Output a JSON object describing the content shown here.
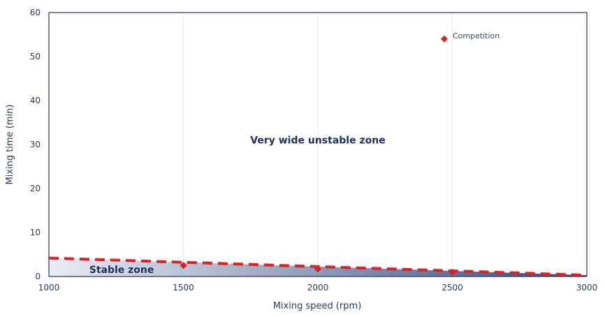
{
  "chart_data": {
    "type": "scatter",
    "xlabel": "Mixing speed (rpm)",
    "ylabel": "Mixing time (min)",
    "xlim": [
      1000,
      3000
    ],
    "ylim": [
      0,
      60
    ],
    "x_ticks": [
      1000,
      1500,
      2000,
      2500,
      3000
    ],
    "y_ticks": [
      0,
      10,
      20,
      30,
      40,
      50,
      60
    ],
    "grid": "vertical",
    "legend_position": "top-right",
    "colors": {
      "axis": "#2b3a5c",
      "grid": "#e6e8ee",
      "stable_fill_start": "#e9ecf4",
      "stable_fill_end": "#34487c",
      "boundary": "#e02020",
      "marker": "#e02020"
    },
    "series": [
      {
        "name": "Competition",
        "marker": "diamond",
        "points": [
          [
            2470,
            54
          ]
        ]
      },
      {
        "name": "",
        "marker": "diamond",
        "points": [
          [
            1500,
            2.5
          ],
          [
            2000,
            1.7
          ],
          [
            2500,
            1.0
          ]
        ]
      }
    ],
    "boundary_line": {
      "style": "dashed",
      "points": [
        [
          1000,
          4.2
        ],
        [
          3000,
          0.3
        ]
      ]
    },
    "annotations": [
      {
        "text": "Very wide unstable zone",
        "x": 2000,
        "y": 31
      },
      {
        "text": "Stable zone",
        "x": 1150,
        "y": 1.6
      }
    ]
  }
}
